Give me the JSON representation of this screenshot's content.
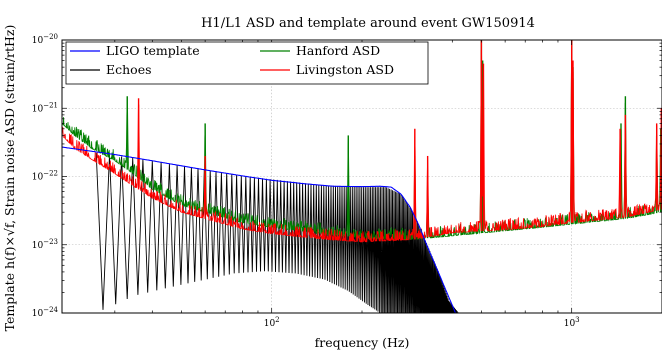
{
  "chart_data": {
    "type": "line",
    "title": "H1/L1 ASD and template around event GW150914",
    "xlabel": "frequency (Hz)",
    "ylabel": "Template h(f)×√f, Strain noise ASD (strain/rtHz)",
    "xscale": "log",
    "yscale": "log",
    "xlim": [
      20,
      2000
    ],
    "ylim": [
      1e-24,
      1e-20
    ],
    "grid": true,
    "legend_position": "top",
    "x_ticks": [
      {
        "value": 100,
        "base": "10",
        "exp": "2"
      },
      {
        "value": 1000,
        "base": "10",
        "exp": "3"
      }
    ],
    "y_ticks": [
      {
        "value": 1e-24,
        "base": "10",
        "exp": "−24"
      },
      {
        "value": 1e-23,
        "base": "10",
        "exp": "−23"
      },
      {
        "value": 1e-22,
        "base": "10",
        "exp": "−22"
      },
      {
        "value": 1e-21,
        "base": "10",
        "exp": "−21"
      },
      {
        "value": 1e-20,
        "base": "10",
        "exp": "−20"
      }
    ],
    "series": [
      {
        "name": "LIGO template",
        "color": "#0000ff",
        "kind": "smooth",
        "points": [
          [
            20,
            2.7e-22
          ],
          [
            30,
            2.1e-22
          ],
          [
            40,
            1.7e-22
          ],
          [
            60,
            1.25e-22
          ],
          [
            80,
            1.02e-22
          ],
          [
            100,
            8.8e-23
          ],
          [
            130,
            7.8e-23
          ],
          [
            160,
            7.2e-23
          ],
          [
            200,
            7.1e-23
          ],
          [
            230,
            7.2e-23
          ],
          [
            250,
            7e-23
          ],
          [
            270,
            5.5e-23
          ],
          [
            290,
            3.5e-23
          ],
          [
            310,
            1.9e-23
          ],
          [
            330,
            9.5e-24
          ],
          [
            355,
            4.5e-24
          ],
          [
            380,
            2.2e-24
          ],
          [
            410,
            1e-24
          ]
        ]
      },
      {
        "name": "Echoes",
        "color": "#000000",
        "kind": "comb",
        "envelope": [
          [
            20,
            2.6e-22
          ],
          [
            40,
            1.7e-22
          ],
          [
            80,
            1.02e-22
          ],
          [
            150,
            7.4e-23
          ],
          [
            200,
            7e-23
          ],
          [
            240,
            7e-23
          ],
          [
            270,
            5.5e-23
          ],
          [
            300,
            2.7e-23
          ],
          [
            330,
            1e-23
          ],
          [
            360,
            4e-24
          ],
          [
            390,
            1.5e-24
          ],
          [
            420,
            1e-24
          ]
        ],
        "floor": [
          [
            26,
            1e-24
          ],
          [
            35,
            1.8e-24
          ],
          [
            50,
            2.6e-24
          ],
          [
            75,
            3.8e-24
          ],
          [
            95,
            4.1e-24
          ],
          [
            120,
            3.8e-24
          ],
          [
            150,
            3.1e-24
          ],
          [
            180,
            2.1e-24
          ],
          [
            210,
            1.3e-24
          ],
          [
            230,
            1e-24
          ]
        ],
        "spacing_hz": 2.8,
        "f_start": 26,
        "f_end": 450
      },
      {
        "name": "Hanford ASD",
        "color": "#008000",
        "kind": "noise",
        "base": [
          [
            20,
            6e-22
          ],
          [
            22,
            4e-22
          ],
          [
            25,
            2.6e-22
          ],
          [
            30,
            1.7e-22
          ],
          [
            35,
            1.05e-22
          ],
          [
            40,
            6.5e-23
          ],
          [
            50,
            3.8e-23
          ],
          [
            60,
            3e-23
          ],
          [
            80,
            2.1e-23
          ],
          [
            100,
            1.8e-23
          ],
          [
            150,
            1.45e-23
          ],
          [
            200,
            1.25e-23
          ],
          [
            300,
            1.2e-23
          ],
          [
            400,
            1.35e-23
          ],
          [
            600,
            1.6e-23
          ],
          [
            800,
            1.8e-23
          ],
          [
            1000,
            2e-23
          ],
          [
            1500,
            2.4e-23
          ],
          [
            2000,
            3e-23
          ]
        ],
        "lines": [
          [
            33,
            1.5e-21
          ],
          [
            60,
            6e-22
          ],
          [
            180,
            4e-22
          ],
          [
            300,
            2e-22
          ],
          [
            331,
            1e-22
          ],
          [
            500,
            1e-20
          ],
          [
            505,
            5e-21
          ],
          [
            1000,
            1e-20
          ],
          [
            1010,
            4e-21
          ],
          [
            1460,
            6e-22
          ],
          [
            1510,
            1.5e-21
          ],
          [
            1920,
            4e-22
          ],
          [
            1980,
            5e-22
          ]
        ]
      },
      {
        "name": "Livingston ASD",
        "color": "#ff0000",
        "kind": "noise",
        "base": [
          [
            20,
            4e-22
          ],
          [
            22,
            2.6e-22
          ],
          [
            25,
            1.8e-22
          ],
          [
            30,
            1.1e-22
          ],
          [
            35,
            7e-23
          ],
          [
            40,
            4.8e-23
          ],
          [
            50,
            3e-23
          ],
          [
            60,
            2.4e-23
          ],
          [
            80,
            1.7e-23
          ],
          [
            100,
            1.45e-23
          ],
          [
            150,
            1.2e-23
          ],
          [
            200,
            1.1e-23
          ],
          [
            300,
            1.2e-23
          ],
          [
            400,
            1.5e-23
          ],
          [
            600,
            1.65e-23
          ],
          [
            800,
            1.85e-23
          ],
          [
            1000,
            2.1e-23
          ],
          [
            1500,
            2.5e-23
          ],
          [
            2000,
            3.3e-23
          ]
        ],
        "lines": [
          [
            36,
            1.4e-21
          ],
          [
            60,
            2e-22
          ],
          [
            300,
            5e-22
          ],
          [
            331,
            2e-22
          ],
          [
            500,
            1e-20
          ],
          [
            508,
            4.5e-21
          ],
          [
            1000,
            1e-20
          ],
          [
            1010,
            5e-21
          ],
          [
            1450,
            5e-22
          ],
          [
            1510,
            8e-22
          ],
          [
            1920,
            6e-22
          ],
          [
            1990,
            1e-21
          ]
        ]
      }
    ]
  }
}
